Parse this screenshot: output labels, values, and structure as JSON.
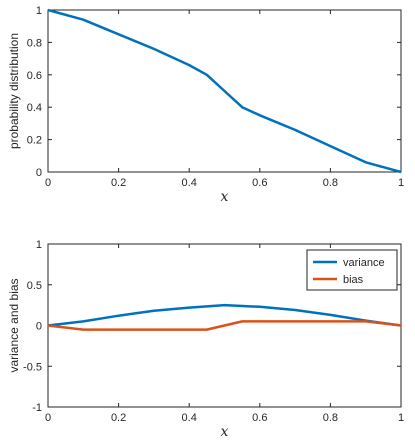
{
  "chart_data": [
    {
      "type": "line",
      "xlabel": "x",
      "ylabel": "probability distribution",
      "xlim": [
        0,
        1
      ],
      "ylim": [
        0,
        1
      ],
      "xticks": [
        "0",
        "0.2",
        "0.4",
        "0.6",
        "0.8",
        "1"
      ],
      "yticks": [
        "0",
        "0.2",
        "0.4",
        "0.6",
        "0.8",
        "1"
      ],
      "grid": false,
      "series": [
        {
          "color": "#0072BD",
          "x": [
            0,
            0.1,
            0.2,
            0.3,
            0.4,
            0.45,
            0.5,
            0.55,
            0.6,
            0.7,
            0.8,
            0.9,
            1.0
          ],
          "y": [
            1.0,
            0.94,
            0.85,
            0.76,
            0.66,
            0.6,
            0.5,
            0.4,
            0.35,
            0.26,
            0.16,
            0.06,
            0.0
          ]
        }
      ]
    },
    {
      "type": "line",
      "xlabel": "x",
      "ylabel": "variance and bias",
      "xlim": [
        0,
        1
      ],
      "ylim": [
        -1,
        1
      ],
      "xticks": [
        "0",
        "0.2",
        "0.4",
        "0.6",
        "0.8",
        "1"
      ],
      "yticks": [
        "-1",
        "-0.5",
        "0",
        "0.5",
        "1"
      ],
      "grid": false,
      "legend": "top-right",
      "series": [
        {
          "name": "variance",
          "color": "#0072BD",
          "x": [
            0,
            0.1,
            0.2,
            0.3,
            0.4,
            0.5,
            0.6,
            0.7,
            0.8,
            0.9,
            1.0
          ],
          "y": [
            0.0,
            0.05,
            0.12,
            0.18,
            0.22,
            0.25,
            0.23,
            0.19,
            0.13,
            0.06,
            0.0
          ]
        },
        {
          "name": "bias",
          "color": "#D95319",
          "x": [
            0,
            0.1,
            0.2,
            0.3,
            0.4,
            0.45,
            0.55,
            0.6,
            0.7,
            0.8,
            0.9,
            1.0
          ],
          "y": [
            0.0,
            -0.05,
            -0.05,
            -0.05,
            -0.05,
            -0.05,
            0.05,
            0.05,
            0.05,
            0.05,
            0.05,
            0.0
          ]
        }
      ]
    }
  ]
}
